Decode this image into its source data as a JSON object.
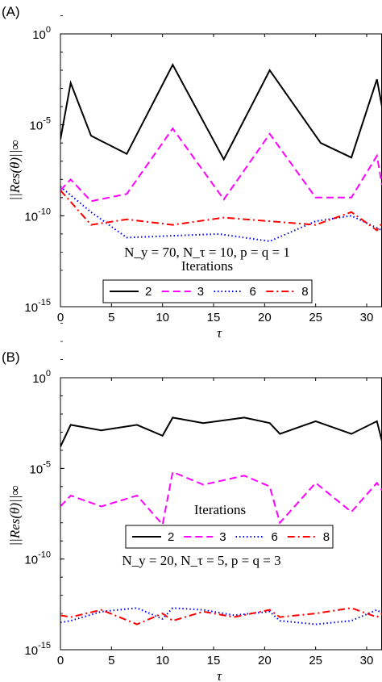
{
  "chart_data": [
    {
      "type": "line",
      "panel_label": "(A)",
      "xlabel": "τ",
      "ylabel": "||Res(θ)||∞",
      "xlim": [
        0,
        31.5
      ],
      "ylim_log10": [
        -15,
        0
      ],
      "y_scale": "log",
      "x_ticks": [
        "0",
        "5",
        "10",
        "15",
        "20",
        "25",
        "30"
      ],
      "y_ticks": [
        {
          "base": "10",
          "exp": "0"
        },
        {
          "base": "10",
          "exp": "-5"
        },
        {
          "base": "10",
          "exp": "-10"
        },
        {
          "base": "10",
          "exp": "-15"
        }
      ],
      "annotation": "N_y = 70, N_τ = 10, p = q = 1",
      "legend_title": "Iterations",
      "legend_placement": "bottom-center",
      "series": [
        {
          "name": "2",
          "color": "#000000",
          "dash": "solid",
          "points": [
            [
              0,
              -5.8
            ],
            [
              1,
              -2.7
            ],
            [
              3,
              -5.6
            ],
            [
              6.5,
              -6.6
            ],
            [
              11,
              -1.7
            ],
            [
              16,
              -6.9
            ],
            [
              20.5,
              -2
            ],
            [
              25.5,
              -6
            ],
            [
              28.5,
              -6.8
            ],
            [
              31,
              -2.5
            ],
            [
              31.5,
              -4
            ]
          ]
        },
        {
          "name": "3",
          "color": "#ff00ff",
          "dash": "dashed",
          "points": [
            [
              0,
              -8.6
            ],
            [
              1,
              -8
            ],
            [
              3,
              -9.2
            ],
            [
              6.5,
              -8.8
            ],
            [
              11,
              -5.2
            ],
            [
              16,
              -9.1
            ],
            [
              20.5,
              -5.5
            ],
            [
              25,
              -9
            ],
            [
              28.5,
              -9
            ],
            [
              31,
              -6.7
            ],
            [
              31.5,
              -8.3
            ]
          ]
        },
        {
          "name": "6",
          "color": "#0000ff",
          "dash": "dotted",
          "points": [
            [
              0,
              -8.4
            ],
            [
              3,
              -9.8
            ],
            [
              6.5,
              -11.2
            ],
            [
              11,
              -11.1
            ],
            [
              15.5,
              -11
            ],
            [
              20.5,
              -11.4
            ],
            [
              25,
              -10.3
            ],
            [
              28.5,
              -10
            ],
            [
              31.5,
              -10.8
            ]
          ]
        },
        {
          "name": "8",
          "color": "#ff0000",
          "dash": "dash-dot",
          "points": [
            [
              0,
              -8.6
            ],
            [
              3,
              -10.5
            ],
            [
              6.5,
              -10.2
            ],
            [
              11,
              -10.5
            ],
            [
              16,
              -10.1
            ],
            [
              20.5,
              -10.3
            ],
            [
              25,
              -10.5
            ],
            [
              28.5,
              -9.8
            ],
            [
              31,
              -10.8
            ],
            [
              31.5,
              -10.4
            ]
          ]
        }
      ]
    },
    {
      "type": "line",
      "panel_label": "(B)",
      "xlabel": "τ",
      "ylabel": "||Res(θ)||∞",
      "xlim": [
        0,
        31.5
      ],
      "ylim_log10": [
        -15,
        0
      ],
      "y_scale": "log",
      "x_ticks": [
        "0",
        "5",
        "10",
        "15",
        "20",
        "25",
        "30"
      ],
      "y_ticks": [
        {
          "base": "10",
          "exp": "0"
        },
        {
          "base": "10",
          "exp": "-5"
        },
        {
          "base": "10",
          "exp": "-10"
        },
        {
          "base": "10",
          "exp": "-15"
        }
      ],
      "annotation": "N_y = 20, N_τ = 5, p = q = 3",
      "legend_title": "Iterations",
      "legend_placement": "center",
      "series": [
        {
          "name": "2",
          "color": "#000000",
          "dash": "solid",
          "points": [
            [
              0,
              -3.8
            ],
            [
              1,
              -2.6
            ],
            [
              4,
              -2.9
            ],
            [
              7.5,
              -2.6
            ],
            [
              10,
              -3.2
            ],
            [
              11,
              -2.2
            ],
            [
              14,
              -2.5
            ],
            [
              18,
              -2.2
            ],
            [
              20.5,
              -2.5
            ],
            [
              21.5,
              -3.1
            ],
            [
              25,
              -2.4
            ],
            [
              28.5,
              -3.1
            ],
            [
              31,
              -2.4
            ],
            [
              31.5,
              -3.5
            ]
          ]
        },
        {
          "name": "3",
          "color": "#ff00ff",
          "dash": "dashed",
          "points": [
            [
              0,
              -7.1
            ],
            [
              1,
              -6.5
            ],
            [
              4,
              -7.1
            ],
            [
              7.5,
              -6.5
            ],
            [
              10,
              -8.1
            ],
            [
              11,
              -5.2
            ],
            [
              14,
              -5.9
            ],
            [
              18,
              -5.4
            ],
            [
              20.5,
              -6
            ],
            [
              21.5,
              -8
            ],
            [
              25,
              -5.8
            ],
            [
              28.5,
              -7.4
            ],
            [
              31,
              -5.8
            ],
            [
              31.5,
              -6.2
            ]
          ]
        },
        {
          "name": "6",
          "color": "#0000ff",
          "dash": "dotted",
          "points": [
            [
              0,
              -13.5
            ],
            [
              1,
              -13.4
            ],
            [
              4,
              -12.9
            ],
            [
              7.5,
              -12.7
            ],
            [
              10,
              -13.3
            ],
            [
              11,
              -12.7
            ],
            [
              14,
              -12.8
            ],
            [
              17,
              -13.1
            ],
            [
              20.5,
              -12.9
            ],
            [
              21.5,
              -13.4
            ],
            [
              25,
              -13.6
            ],
            [
              28.5,
              -13.4
            ],
            [
              31,
              -12.8
            ],
            [
              31.5,
              -13
            ]
          ]
        },
        {
          "name": "8",
          "color": "#ff0000",
          "dash": "dash-dot",
          "points": [
            [
              0,
              -13.1
            ],
            [
              1,
              -13.2
            ],
            [
              4,
              -12.8
            ],
            [
              7.5,
              -13.6
            ],
            [
              10,
              -13
            ],
            [
              11,
              -13.4
            ],
            [
              14,
              -12.9
            ],
            [
              17,
              -13.2
            ],
            [
              20.5,
              -12.8
            ],
            [
              21.5,
              -13.2
            ],
            [
              25,
              -13
            ],
            [
              28.5,
              -12.7
            ],
            [
              31,
              -13.2
            ],
            [
              31.5,
              -13
            ]
          ]
        }
      ]
    }
  ]
}
